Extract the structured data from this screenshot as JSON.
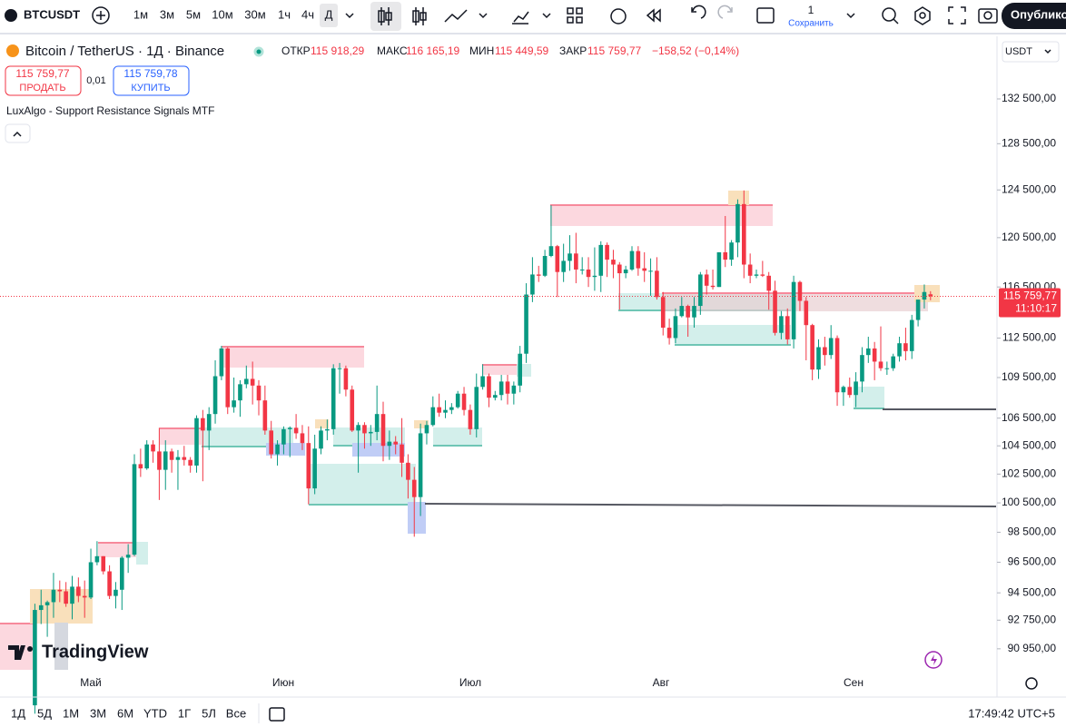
{
  "toolbar": {
    "symbol": "BTCUSDT",
    "intervals": [
      "1м",
      "3м",
      "5м",
      "10м",
      "30м",
      "1ч",
      "4ч",
      "Д"
    ],
    "save_count": "1",
    "save_label": "Сохранить",
    "publish": "Опублико"
  },
  "legend": {
    "title": "Bitcoin / TetherUS · 1Д · Binance",
    "ohlc": [
      {
        "label": "ОТКР",
        "value": "115 918,29"
      },
      {
        "label": "МАКС",
        "value": "116 165,19"
      },
      {
        "label": "МИН",
        "value": "115 449,59"
      },
      {
        "label": "ЗАКР",
        "value": "115 759,77"
      }
    ],
    "change": "−158,52 (−0,14%)"
  },
  "trade": {
    "sell_price": "115 759,77",
    "sell": "ПРОДАТЬ",
    "spread": "0,01",
    "buy_price": "115 759,78",
    "buy": "КУПИТЬ"
  },
  "indicator": "LuxAlgo - Support Resistance Signals MTF",
  "currency": "USDT",
  "price_tag": {
    "price": "115 759,77",
    "countdown": "11:10:17"
  },
  "watermark": "TradingView",
  "bottom": {
    "ranges": [
      "1Д",
      "5Д",
      "1М",
      "3М",
      "6М",
      "YTD",
      "1Г",
      "5Л",
      "Все"
    ],
    "clock": "17:49:42 UTC+5"
  },
  "chart_data": {
    "type": "candlestick",
    "log_scale": true,
    "up_color": "#089981",
    "down_color": "#f23645",
    "x_labels": [
      "Май",
      "Июн",
      "Июл",
      "Авг",
      "Сен"
    ],
    "ylim": [
      89540,
      138300
    ],
    "yticks": [
      {
        "value": 132500,
        "label": "132 500,00"
      },
      {
        "value": 128500,
        "label": "128 500,00"
      },
      {
        "value": 124500,
        "label": "124 500,00"
      },
      {
        "value": 120500,
        "label": "120 500,00"
      },
      {
        "value": 116500,
        "label": "116 500,00"
      },
      {
        "value": 112500,
        "label": "112 500,00"
      },
      {
        "value": 109500,
        "label": "109 500,00"
      },
      {
        "value": 106500,
        "label": "106 500,00"
      },
      {
        "value": 104500,
        "label": "104 500,00"
      },
      {
        "value": 102500,
        "label": "102 500,00"
      },
      {
        "value": 100500,
        "label": "100 500,00"
      },
      {
        "value": 98500,
        "label": "98 500,00"
      },
      {
        "value": 96500,
        "label": "96 500,00"
      },
      {
        "value": 94500,
        "label": "94 500,00"
      },
      {
        "value": 92750,
        "label": "92 750,00"
      },
      {
        "value": 90950,
        "label": "90 950,00"
      }
    ],
    "candles": [
      [
        87500,
        93800,
        87000,
        93400
      ],
      [
        93400,
        94700,
        92500,
        93700
      ],
      [
        93700,
        94000,
        91700,
        93900
      ],
      [
        93900,
        95800,
        92900,
        94700
      ],
      [
        94700,
        95300,
        93900,
        94600
      ],
      [
        94600,
        95200,
        93600,
        93800
      ],
      [
        93800,
        95600,
        92800,
        94900
      ],
      [
        94900,
        95500,
        93900,
        94300
      ],
      [
        94300,
        95300,
        92900,
        94200
      ],
      [
        94200,
        97400,
        94100,
        96500
      ],
      [
        96500,
        97900,
        96300,
        96900
      ],
      [
        96900,
        96900,
        95700,
        95900
      ],
      [
        95900,
        96300,
        94100,
        94300
      ],
      [
        94300,
        95200,
        93500,
        94700
      ],
      [
        94700,
        96900,
        93400,
        96800
      ],
      [
        96800,
        97700,
        95800,
        97000
      ],
      [
        97000,
        103900,
        96900,
        103200
      ],
      [
        103200,
        104300,
        102300,
        102900
      ],
      [
        102900,
        104900,
        102800,
        104600
      ],
      [
        104600,
        104900,
        103300,
        104100
      ],
      [
        104100,
        105800,
        100700,
        102800
      ],
      [
        102800,
        104900,
        101400,
        104100
      ],
      [
        104100,
        104300,
        102600,
        103500
      ],
      [
        103500,
        104200,
        101400,
        103700
      ],
      [
        103700,
        104500,
        103100,
        103500
      ],
      [
        103500,
        103700,
        102600,
        103100
      ],
      [
        103100,
        106700,
        102600,
        106500
      ],
      [
        106500,
        107100,
        102000,
        105600
      ],
      [
        105600,
        107300,
        104200,
        106800
      ],
      [
        106800,
        110800,
        106100,
        109600
      ],
      [
        109600,
        111900,
        109300,
        111700
      ],
      [
        111700,
        111800,
        106800,
        107300
      ],
      [
        107300,
        109500,
        106900,
        107800
      ],
      [
        107800,
        109300,
        106600,
        109000
      ],
      [
        109000,
        110400,
        108700,
        109400
      ],
      [
        109400,
        110700,
        107500,
        108900
      ],
      [
        108900,
        109300,
        106700,
        107800
      ],
      [
        107800,
        108900,
        105300,
        105600
      ],
      [
        105600,
        106300,
        103600,
        103900
      ],
      [
        103900,
        104900,
        103100,
        104600
      ],
      [
        104600,
        105900,
        103900,
        105700
      ],
      [
        105700,
        105900,
        103700,
        105800
      ],
      [
        105800,
        106800,
        105000,
        105400
      ],
      [
        105400,
        106000,
        104200,
        104700
      ],
      [
        104700,
        105900,
        100400,
        101500
      ],
      [
        101500,
        105300,
        101100,
        104300
      ],
      [
        104300,
        105900,
        103900,
        105600
      ],
      [
        105600,
        106400,
        104900,
        105700
      ],
      [
        105700,
        110500,
        105300,
        110200
      ],
      [
        110200,
        110600,
        108300,
        110200
      ],
      [
        110200,
        110400,
        108100,
        108600
      ],
      [
        108600,
        108900,
        105500,
        105600
      ],
      [
        105600,
        106200,
        102600,
        106000
      ],
      [
        106000,
        106200,
        104300,
        105400
      ],
      [
        105400,
        106000,
        104500,
        105500
      ],
      [
        105500,
        108900,
        104900,
        106800
      ],
      [
        106800,
        107700,
        103400,
        104500
      ],
      [
        104500,
        105600,
        103500,
        104800
      ],
      [
        104800,
        105200,
        103900,
        104600
      ],
      [
        104600,
        106500,
        102300,
        103300
      ],
      [
        103300,
        103900,
        100800,
        102100
      ],
      [
        102100,
        103000,
        98200,
        100900
      ],
      [
        100900,
        106100,
        99600,
        105400
      ],
      [
        105400,
        106300,
        104600,
        106000
      ],
      [
        106000,
        108100,
        105900,
        107300
      ],
      [
        107300,
        108300,
        106600,
        106900
      ],
      [
        106900,
        107800,
        106500,
        107100
      ],
      [
        107100,
        107600,
        106800,
        107300
      ],
      [
        107300,
        108500,
        107200,
        108300
      ],
      [
        108300,
        108800,
        106700,
        107100
      ],
      [
        107100,
        107500,
        105300,
        105700
      ],
      [
        105700,
        109800,
        105100,
        108800
      ],
      [
        108800,
        110500,
        108600,
        109600
      ],
      [
        109600,
        109800,
        107300,
        108000
      ],
      [
        108000,
        108500,
        107800,
        108200
      ],
      [
        108200,
        109700,
        107800,
        109200
      ],
      [
        109200,
        109700,
        107500,
        108300
      ],
      [
        108300,
        109200,
        107500,
        108900
      ],
      [
        108900,
        111900,
        108400,
        111300
      ],
      [
        111300,
        116800,
        110600,
        115900
      ],
      [
        115900,
        118900,
        115300,
        117500
      ],
      [
        117500,
        118200,
        116900,
        117400
      ],
      [
        117400,
        119500,
        117300,
        119000
      ],
      [
        119000,
        123200,
        118900,
        119800
      ],
      [
        119800,
        119900,
        115700,
        117700
      ],
      [
        117700,
        120000,
        116900,
        118600
      ],
      [
        118600,
        120700,
        117800,
        119200
      ],
      [
        119200,
        120900,
        116800,
        117900
      ],
      [
        117900,
        118900,
        117500,
        117900
      ],
      [
        117900,
        118900,
        116500,
        117300
      ],
      [
        117300,
        119700,
        116200,
        117400
      ],
      [
        117400,
        120200,
        116100,
        119900
      ],
      [
        119900,
        120100,
        117300,
        118700
      ],
      [
        118700,
        119500,
        117200,
        118300
      ],
      [
        118300,
        118500,
        114700,
        117600
      ],
      [
        117600,
        118200,
        117200,
        117900
      ],
      [
        117900,
        119800,
        117800,
        119400
      ],
      [
        119400,
        119800,
        117400,
        118000
      ],
      [
        118000,
        119300,
        116900,
        117800
      ],
      [
        117800,
        118800,
        115800,
        117800
      ],
      [
        117800,
        118900,
        115500,
        115700
      ],
      [
        115700,
        116100,
        112700,
        113300
      ],
      [
        113300,
        114000,
        112000,
        112500
      ],
      [
        112500,
        114800,
        112100,
        114200
      ],
      [
        114200,
        115700,
        114100,
        115000
      ],
      [
        115000,
        115100,
        112600,
        114100
      ],
      [
        114100,
        115700,
        113300,
        115000
      ],
      [
        115000,
        117700,
        114300,
        117500
      ],
      [
        117500,
        117900,
        115900,
        116600
      ],
      [
        116600,
        117900,
        116300,
        116500
      ],
      [
        116500,
        119300,
        116500,
        119300
      ],
      [
        119300,
        122300,
        118100,
        118700
      ],
      [
        118700,
        120300,
        118200,
        120100
      ],
      [
        120100,
        123700,
        118900,
        123300
      ],
      [
        123300,
        124457,
        117200,
        118300
      ],
      [
        118300,
        119200,
        116800,
        117400
      ],
      [
        117400,
        117900,
        117200,
        117500
      ],
      [
        117500,
        118600,
        117300,
        117400
      ],
      [
        117400,
        117700,
        114700,
        116200
      ],
      [
        116200,
        117000,
        112700,
        112900
      ],
      [
        112900,
        114600,
        112400,
        114200
      ],
      [
        114200,
        114800,
        112000,
        112400
      ],
      [
        112400,
        117400,
        111700,
        116900
      ],
      [
        116900,
        117000,
        114600,
        115400
      ],
      [
        115400,
        115700,
        110800,
        113500
      ],
      [
        113500,
        113600,
        109300,
        110100
      ],
      [
        110100,
        112400,
        109400,
        111800
      ],
      [
        111800,
        112600,
        110400,
        111200
      ],
      [
        111200,
        113500,
        110900,
        112500
      ],
      [
        112500,
        112700,
        107400,
        108400
      ],
      [
        108400,
        108900,
        107400,
        108800
      ],
      [
        108800,
        109500,
        108000,
        108200
      ],
      [
        108200,
        109900,
        107300,
        109200
      ],
      [
        109200,
        111800,
        108400,
        111200
      ],
      [
        111200,
        112600,
        110600,
        111700
      ],
      [
        111700,
        112200,
        109300,
        110700
      ],
      [
        110700,
        113400,
        110000,
        110200
      ],
      [
        110200,
        110700,
        109700,
        110200
      ],
      [
        110200,
        111300,
        110000,
        111100
      ],
      [
        111100,
        112600,
        110700,
        112100
      ],
      [
        112100,
        113300,
        110800,
        111500
      ],
      [
        111500,
        114300,
        110900,
        113900
      ],
      [
        113900,
        115500,
        113400,
        115500
      ],
      [
        115500,
        116700,
        114800,
        116100
      ],
      [
        115918.29,
        116165.19,
        115449.59,
        115759.77
      ]
    ]
  }
}
